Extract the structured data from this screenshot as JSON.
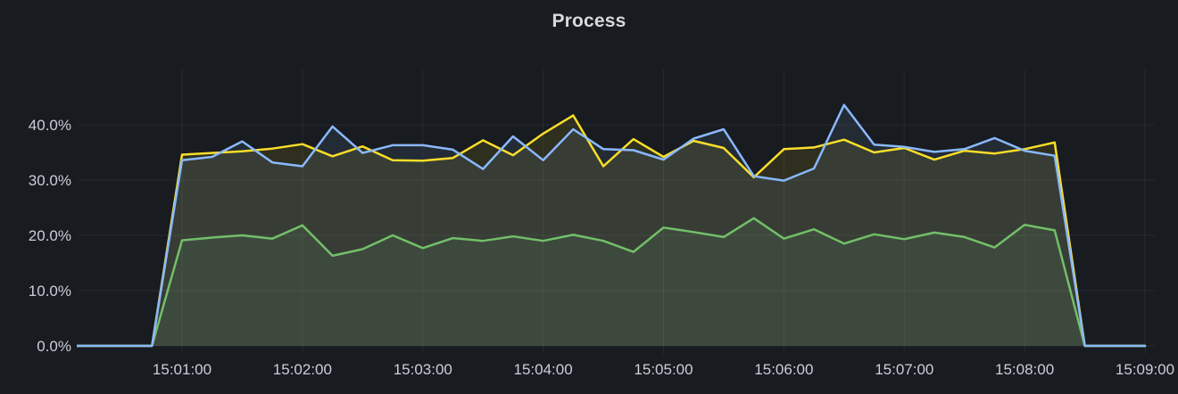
{
  "panel": {
    "title": "Process"
  },
  "chart_data": {
    "type": "area",
    "title": "Process",
    "grid": true,
    "legend": "none",
    "fill_opacity": 0.1,
    "ylim": [
      0,
      50
    ],
    "unit": "percent",
    "x_axis": {
      "tick_labels": [
        "15:01:00",
        "15:02:00",
        "15:03:00",
        "15:04:00",
        "15:05:00",
        "15:06:00",
        "15:07:00",
        "15:08:00",
        "15:09:00"
      ]
    },
    "y_axis": {
      "tick_labels": [
        "0.0%",
        "10.0%",
        "20.0%",
        "30.0%",
        "40.0%"
      ],
      "tick_values": [
        0,
        10,
        20,
        30,
        40
      ]
    },
    "times": [
      "15:00:00",
      "15:00:15",
      "15:00:30",
      "15:00:45",
      "15:01:00",
      "15:01:15",
      "15:01:30",
      "15:01:45",
      "15:02:00",
      "15:02:15",
      "15:02:30",
      "15:02:45",
      "15:03:00",
      "15:03:15",
      "15:03:30",
      "15:03:45",
      "15:04:00",
      "15:04:15",
      "15:04:30",
      "15:04:45",
      "15:05:00",
      "15:05:15",
      "15:05:30",
      "15:05:45",
      "15:06:00",
      "15:06:15",
      "15:06:30",
      "15:06:45",
      "15:07:00",
      "15:07:15",
      "15:07:30",
      "15:07:45",
      "15:08:00",
      "15:08:15",
      "15:08:30",
      "15:08:45",
      "15:09:00"
    ],
    "series": [
      {
        "name": "yellow",
        "color": "#FADE2A",
        "values": [
          0,
          0,
          0,
          0,
          34.6,
          34.9,
          35.2,
          35.7,
          36.5,
          34.3,
          36.1,
          33.6,
          33.5,
          34.0,
          37.2,
          34.5,
          38.4,
          41.7,
          32.5,
          37.4,
          34.2,
          37.1,
          35.8,
          30.5,
          35.6,
          35.9,
          37.3,
          35.0,
          35.8,
          33.7,
          35.3,
          34.8,
          35.6,
          36.8,
          0,
          0,
          0
        ]
      },
      {
        "name": "green",
        "color": "#73BF69",
        "values": [
          0,
          0,
          0,
          0,
          19.1,
          19.6,
          20.0,
          19.4,
          21.8,
          16.3,
          17.5,
          20.0,
          17.7,
          19.5,
          19.0,
          19.8,
          19.0,
          20.1,
          19.0,
          17.0,
          21.4,
          20.6,
          19.7,
          23.1,
          19.4,
          21.1,
          18.5,
          20.2,
          19.3,
          20.5,
          19.7,
          17.8,
          21.9,
          20.9,
          0,
          0,
          0
        ]
      },
      {
        "name": "blue",
        "color": "#8AB8FF",
        "values": [
          0,
          0,
          0,
          0,
          33.6,
          34.2,
          37.0,
          33.2,
          32.5,
          39.7,
          34.9,
          36.3,
          36.3,
          35.5,
          32.0,
          37.9,
          33.6,
          39.2,
          35.6,
          35.4,
          33.7,
          37.5,
          39.2,
          30.7,
          29.9,
          32.1,
          43.6,
          36.4,
          36.0,
          35.1,
          35.6,
          37.6,
          35.3,
          34.4,
          0,
          0,
          0
        ]
      }
    ]
  }
}
